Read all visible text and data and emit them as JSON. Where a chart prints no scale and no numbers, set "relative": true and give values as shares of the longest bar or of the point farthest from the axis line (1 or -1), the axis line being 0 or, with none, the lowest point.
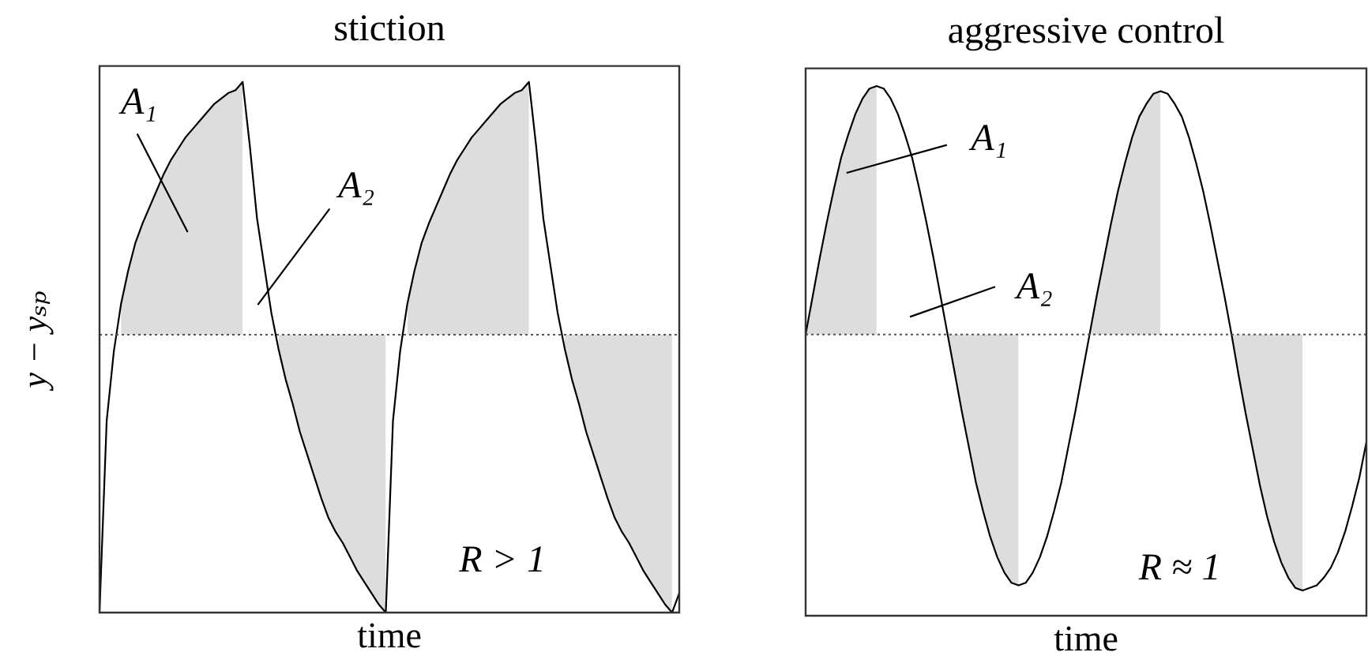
{
  "chart_data": [
    {
      "type": "line",
      "title": "stiction",
      "xlabel": "time",
      "ylabel": "y − yₛₚ",
      "relative": true,
      "categories": [
        null,
        null,
        null,
        null,
        null,
        null,
        null,
        null,
        null,
        null,
        null,
        null,
        null,
        null,
        null,
        null,
        null,
        null,
        null,
        null,
        null,
        null,
        null,
        null,
        null,
        null,
        null,
        null,
        null,
        null,
        null,
        null,
        null,
        null,
        null,
        null,
        null,
        null,
        null,
        null,
        null,
        null,
        null,
        null,
        null,
        null,
        null,
        null,
        null,
        null,
        null,
        null,
        null,
        null,
        null,
        null,
        null,
        null,
        null,
        null,
        null,
        null,
        null,
        null,
        null,
        null,
        null,
        null,
        null,
        null,
        null,
        null,
        null,
        null,
        null,
        null,
        null,
        null,
        null,
        null,
        null,
        null
      ],
      "series": [
        {
          "color": "#000000",
          "values": [
            -1,
            -0.31,
            -0.06,
            0.11,
            0.23,
            0.33,
            0.4,
            0.46,
            0.52,
            0.58,
            0.63,
            0.67,
            0.71,
            0.74,
            0.77,
            0.8,
            0.83,
            0.85,
            0.87,
            0.88,
            0.91,
            0.68,
            0.42,
            0.25,
            0.08,
            -0.05,
            -0.16,
            -0.25,
            -0.35,
            -0.43,
            -0.51,
            -0.59,
            -0.66,
            -0.71,
            -0.75,
            -0.8,
            -0.85,
            -0.89,
            -0.93,
            -0.97,
            -1,
            -0.31,
            -0.06,
            0.11,
            0.23,
            0.33,
            0.4,
            0.46,
            0.52,
            0.58,
            0.63,
            0.67,
            0.71,
            0.74,
            0.77,
            0.8,
            0.83,
            0.85,
            0.87,
            0.88,
            0.91,
            0.68,
            0.42,
            0.25,
            0.08,
            -0.05,
            -0.16,
            -0.25,
            -0.35,
            -0.43,
            -0.51,
            -0.59,
            -0.66,
            -0.71,
            -0.75,
            -0.8,
            -0.85,
            -0.89,
            -0.93,
            -0.97,
            -1,
            -0.93
          ]
        },
        {
          "type": "area",
          "color": "#dddddd",
          "values": [
            null,
            null,
            null,
            0.11,
            0.23,
            0.33,
            0.4,
            0.46,
            0.52,
            0.58,
            0.63,
            0.67,
            0.71,
            0.74,
            0.77,
            0.8,
            0.83,
            0.85,
            0.87,
            0.88,
            0.91,
            null,
            null,
            null,
            null,
            -0.05,
            -0.16,
            -0.25,
            -0.35,
            -0.43,
            -0.51,
            -0.59,
            -0.66,
            -0.71,
            -0.75,
            -0.8,
            -0.85,
            -0.89,
            -0.93,
            -0.97,
            -1,
            null,
            null,
            0.11,
            0.23,
            0.33,
            0.4,
            0.46,
            0.52,
            0.58,
            0.63,
            0.67,
            0.71,
            0.74,
            0.77,
            0.8,
            0.83,
            0.85,
            0.87,
            0.88,
            0.91,
            null,
            null,
            null,
            null,
            -0.05,
            -0.16,
            -0.25,
            -0.35,
            -0.43,
            -0.51,
            -0.59,
            -0.66,
            -0.71,
            -0.75,
            -0.8,
            -0.85,
            -0.89,
            -0.93,
            -0.97,
            -1,
            null
          ]
        }
      ],
      "ref_lines": [
        {
          "axis": "y",
          "value": 0,
          "line_style": "dotted",
          "color": "#555555"
        }
      ],
      "annotations": [
        "A₁",
        "A₂",
        "R > 1"
      ]
    },
    {
      "type": "line",
      "title": "aggressive control",
      "xlabel": "time",
      "relative": true,
      "categories": [
        null,
        null,
        null,
        null,
        null,
        null,
        null,
        null,
        null,
        null,
        null,
        null,
        null,
        null,
        null,
        null,
        null,
        null,
        null,
        null,
        null,
        null,
        null,
        null,
        null,
        null,
        null,
        null,
        null,
        null,
        null,
        null,
        null,
        null,
        null,
        null,
        null,
        null,
        null,
        null,
        null,
        null,
        null,
        null,
        null,
        null,
        null,
        null,
        null,
        null,
        null,
        null,
        null,
        null,
        null,
        null,
        null,
        null,
        null,
        null,
        null,
        null,
        null,
        null,
        null,
        null,
        null,
        null,
        null,
        null,
        null,
        null,
        null,
        null,
        null,
        null,
        null,
        null,
        null,
        null
      ],
      "series": [
        {
          "color": "#000000",
          "values": [
            0,
            0.15,
            0.3,
            0.44,
            0.57,
            0.69,
            0.78,
            0.86,
            0.92,
            0.96,
            0.97,
            0.96,
            0.92,
            0.86,
            0.78,
            0.69,
            0.57,
            0.44,
            0.3,
            0.15,
            0,
            -0.15,
            -0.3,
            -0.44,
            -0.58,
            -0.69,
            -0.79,
            -0.87,
            -0.93,
            -0.97,
            -0.98,
            -0.97,
            -0.93,
            -0.87,
            -0.79,
            -0.69,
            -0.58,
            -0.44,
            -0.3,
            -0.15,
            0,
            0.15,
            0.29,
            0.43,
            0.56,
            0.67,
            0.77,
            0.85,
            0.9,
            0.94,
            0.95,
            0.94,
            0.9,
            0.85,
            0.77,
            0.67,
            0.56,
            0.43,
            0.29,
            0.15,
            0,
            -0.16,
            -0.31,
            -0.45,
            -0.59,
            -0.71,
            -0.81,
            -0.89,
            -0.95,
            -0.99,
            -1,
            -0.99,
            -0.98,
            -0.95,
            -0.91,
            -0.85,
            -0.77,
            -0.67,
            -0.56,
            -0.42
          ]
        },
        {
          "type": "area",
          "color": "#dddddd",
          "values": [
            0,
            0.15,
            0.3,
            0.44,
            0.57,
            0.69,
            0.78,
            0.86,
            0.92,
            0.96,
            0.97,
            null,
            null,
            null,
            null,
            null,
            null,
            null,
            null,
            null,
            0,
            -0.15,
            -0.3,
            -0.44,
            -0.58,
            -0.69,
            -0.79,
            -0.87,
            -0.93,
            -0.97,
            -0.98,
            null,
            null,
            null,
            null,
            null,
            null,
            null,
            null,
            null,
            0,
            0.15,
            0.29,
            0.43,
            0.56,
            0.67,
            0.77,
            0.85,
            0.9,
            0.94,
            0.95,
            null,
            null,
            null,
            null,
            null,
            null,
            null,
            null,
            null,
            0,
            -0.16,
            -0.31,
            -0.45,
            -0.59,
            -0.71,
            -0.81,
            -0.89,
            -0.95,
            -0.99,
            -1,
            null,
            null,
            null,
            null,
            null,
            null,
            null,
            null,
            null
          ]
        }
      ],
      "ref_lines": [
        {
          "axis": "y",
          "value": 0,
          "line_style": "dotted",
          "color": "#555555"
        }
      ],
      "annotations": [
        "A₁",
        "A₂",
        "R ≈ 1"
      ]
    }
  ]
}
